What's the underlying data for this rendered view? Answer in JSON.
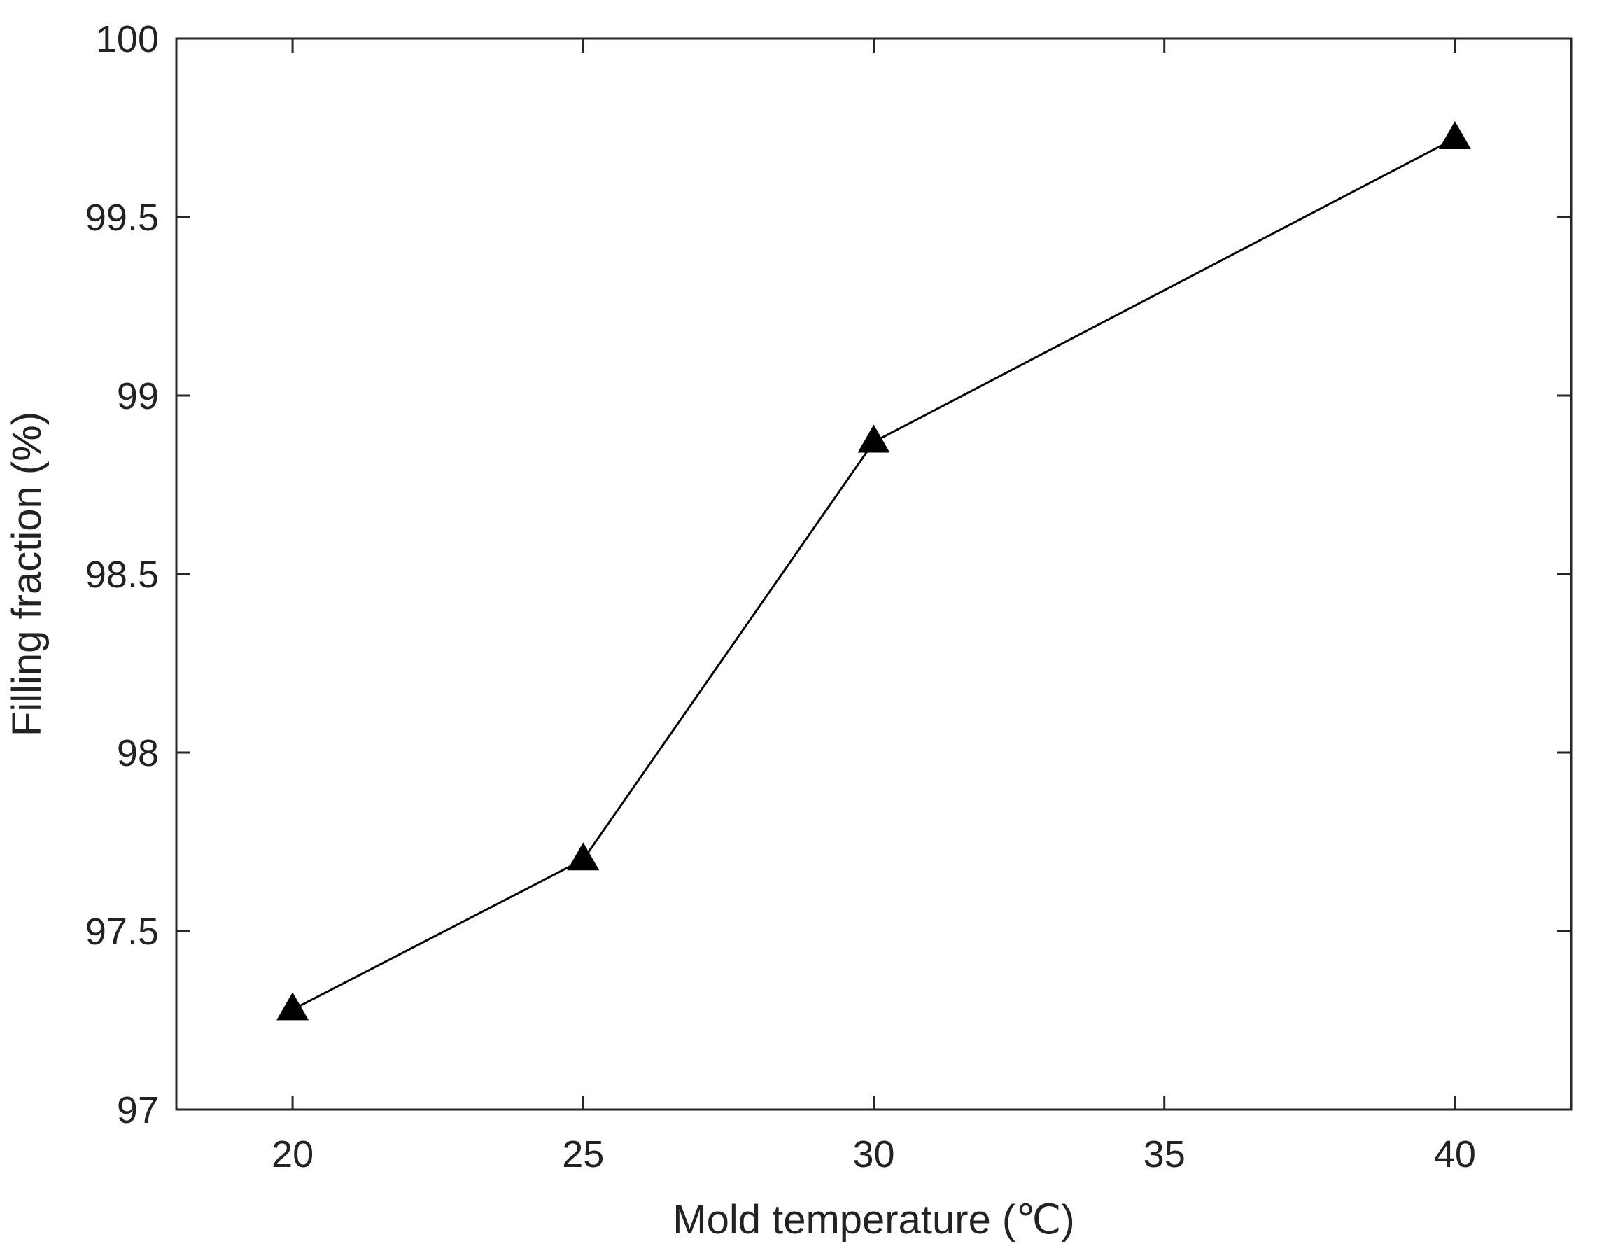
{
  "chart_data": {
    "type": "line",
    "title": "",
    "xlabel": "Mold temperature (℃)",
    "ylabel": "Filling fraction (%)",
    "xlim": [
      18,
      42
    ],
    "ylim": [
      97,
      100
    ],
    "x_ticks": [
      20,
      25,
      30,
      35,
      40
    ],
    "y_ticks": [
      97,
      97.5,
      98,
      98.5,
      99,
      99.5,
      100
    ],
    "x_tick_labels": [
      "20",
      "25",
      "30",
      "35",
      "40"
    ],
    "y_tick_labels": [
      "97",
      "97.5",
      "98",
      "98.5",
      "99",
      "99.5",
      "100"
    ],
    "grid": false,
    "series": [
      {
        "marker": "triangle",
        "color": "#000000",
        "x": [
          20,
          25,
          30,
          40
        ],
        "y": [
          97.28,
          97.7,
          98.87,
          99.72
        ]
      }
    ]
  }
}
